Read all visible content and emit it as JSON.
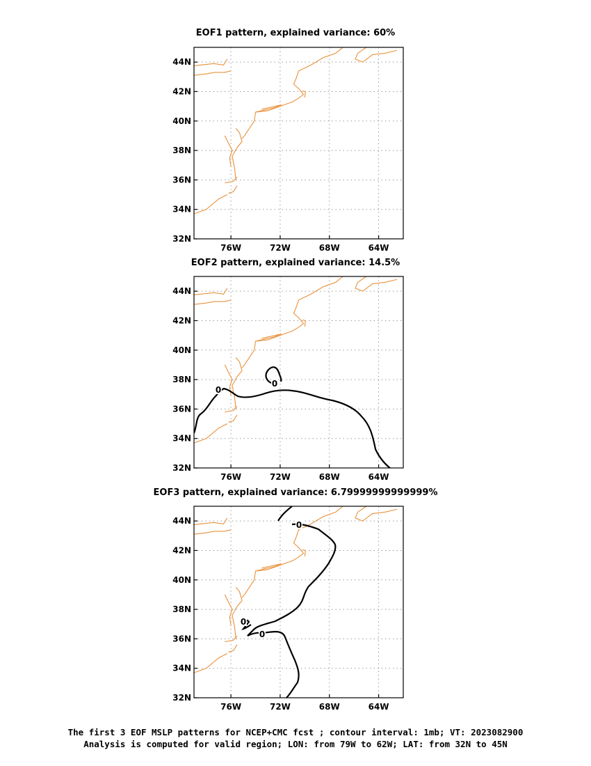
{
  "colors": {
    "coast": "#e8913a",
    "contour": "#000000",
    "grid": "#999999"
  },
  "axis": {
    "lon_ticks": [
      "76W",
      "72W",
      "68W",
      "64W"
    ],
    "lat_ticks": [
      "44N",
      "42N",
      "40N",
      "38N",
      "36N",
      "34N",
      "32N"
    ],
    "lon_range": [
      -79,
      -62
    ],
    "lat_range": [
      32,
      45
    ],
    "grid": "dotted"
  },
  "panels": [
    {
      "title": "EOF1 pattern, explained variance: 60%",
      "contour_labels": []
    },
    {
      "title": "EOF2 pattern, explained variance: 14.5%",
      "contour_labels": [
        "0",
        "0"
      ]
    },
    {
      "title": "EOF3 pattern, explained variance: 6.79999999999999%",
      "contour_labels": [
        "0",
        "0",
        "0"
      ]
    }
  ],
  "caption": {
    "line1": "The first 3 EOF MSLP patterns for NCEP+CMC fcst ; contour interval: 1mb; VT: 2023082900",
    "line2": "Analysis is computed for valid region; LON: from 79W to 62W; LAT: from 32N to 45N"
  }
}
